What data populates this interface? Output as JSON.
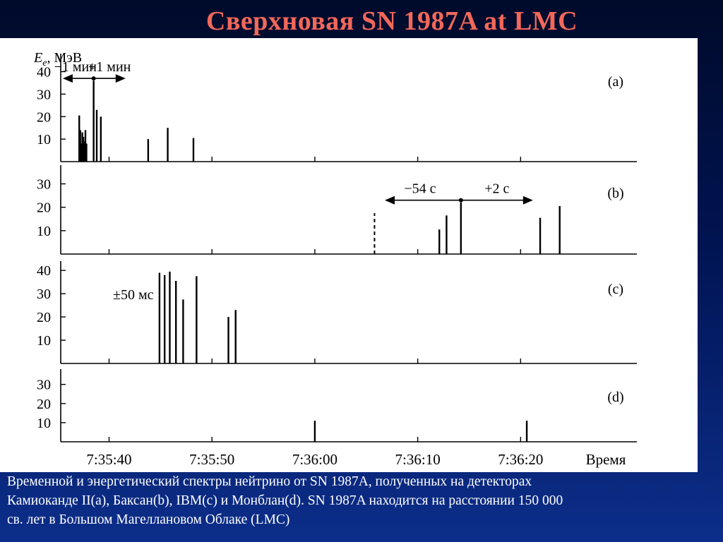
{
  "slide": {
    "title": "Сверхновая SN 1987A at LMC",
    "caption_lines": [
      "Временной и энергетический спектры нейтрино от SN 1987A, полученных на детекторах",
      "Камиоканде II(a), Баксан(b), IBM(c) и Монблан(d). SN 1987A находится на расстоянии 150 000",
      "св. лет в Большом Магеллановом Облаке (LMC)"
    ]
  },
  "chart_data": {
    "type": "bar",
    "ylabel_italic": "E",
    "ylabel_sub": "e",
    "ylabel_rest": ", МэВ",
    "xlabel": "Время",
    "xlim": [
      -4.7,
      36
    ],
    "x_ticks": [
      "7:35:40",
      "7:35:50",
      "7:36:00",
      "7:36:10",
      "7:36:20"
    ],
    "x_tick_values": [
      0,
      10,
      20,
      30,
      40
    ],
    "panels": [
      {
        "id": "a",
        "label": "(a)",
        "ylim": [
          0,
          48
        ],
        "y_ticks": [
          "10",
          "20",
          "30",
          "40"
        ],
        "y_tick_values": [
          10,
          20,
          30,
          40
        ],
        "events": [
          {
            "t": -2.9,
            "E": 20.5
          },
          {
            "t": -2.8,
            "E": 14
          },
          {
            "t": -2.7,
            "E": 8
          },
          {
            "t": -2.6,
            "E": 13
          },
          {
            "t": -2.5,
            "E": 11
          },
          {
            "t": -2.4,
            "E": 9
          },
          {
            "t": -2.3,
            "E": 14
          },
          {
            "t": -2.2,
            "E": 8
          },
          {
            "t": -1.5,
            "E": 36
          },
          {
            "t": -1.2,
            "E": 23
          },
          {
            "t": -0.8,
            "E": 20
          },
          {
            "t": 3.8,
            "E": 10
          },
          {
            "t": 5.7,
            "E": 15
          },
          {
            "t": 8.2,
            "E": 10.5
          }
        ],
        "annotation": {
          "left_text": "−1 мин",
          "right_text": "+1 мин",
          "center_t": -1.5,
          "left_t": -4.5,
          "right_t": 1.6,
          "level": 37
        }
      },
      {
        "id": "b",
        "label": "(b)",
        "ylim": [
          0,
          38
        ],
        "y_ticks": [
          "10",
          "20",
          "30"
        ],
        "y_tick_values": [
          10,
          20,
          30
        ],
        "events": [
          {
            "t": 32.1,
            "E": 10.5
          },
          {
            "t": 32.8,
            "E": 16.5
          },
          {
            "t": 34.2,
            "E": 22
          },
          {
            "t": 41.9,
            "E": 15.5
          },
          {
            "t": 43.8,
            "E": 20.5
          }
        ],
        "dashed": {
          "t": 25.8,
          "E": 17.5
        },
        "annotation": {
          "left_text": "−54 с",
          "right_text": "+2 с",
          "center_t": 34.2,
          "left_t": 26.8,
          "right_t": 41.2,
          "level": 23
        }
      },
      {
        "id": "c",
        "label": "(c)",
        "ylim": [
          0,
          44
        ],
        "y_ticks": [
          "10",
          "20",
          "30",
          "40"
        ],
        "y_tick_values": [
          10,
          20,
          30,
          40
        ],
        "events": [
          {
            "t": 4.9,
            "E": 39
          },
          {
            "t": 5.4,
            "E": 38
          },
          {
            "t": 5.9,
            "E": 39.5
          },
          {
            "t": 6.5,
            "E": 35.5
          },
          {
            "t": 7.2,
            "E": 27.5
          },
          {
            "t": 8.5,
            "E": 37.5
          },
          {
            "t": 11.6,
            "E": 20
          },
          {
            "t": 12.3,
            "E": 23
          }
        ],
        "annotation_text": "±50 мс"
      },
      {
        "id": "d",
        "label": "(d)",
        "ylim": [
          0,
          38
        ],
        "y_ticks": [
          "10",
          "20",
          "30"
        ],
        "y_tick_values": [
          10,
          20,
          30
        ],
        "events": [
          {
            "t": 20.0,
            "E": 11
          },
          {
            "t": 40.6,
            "E": 11
          }
        ]
      }
    ]
  }
}
